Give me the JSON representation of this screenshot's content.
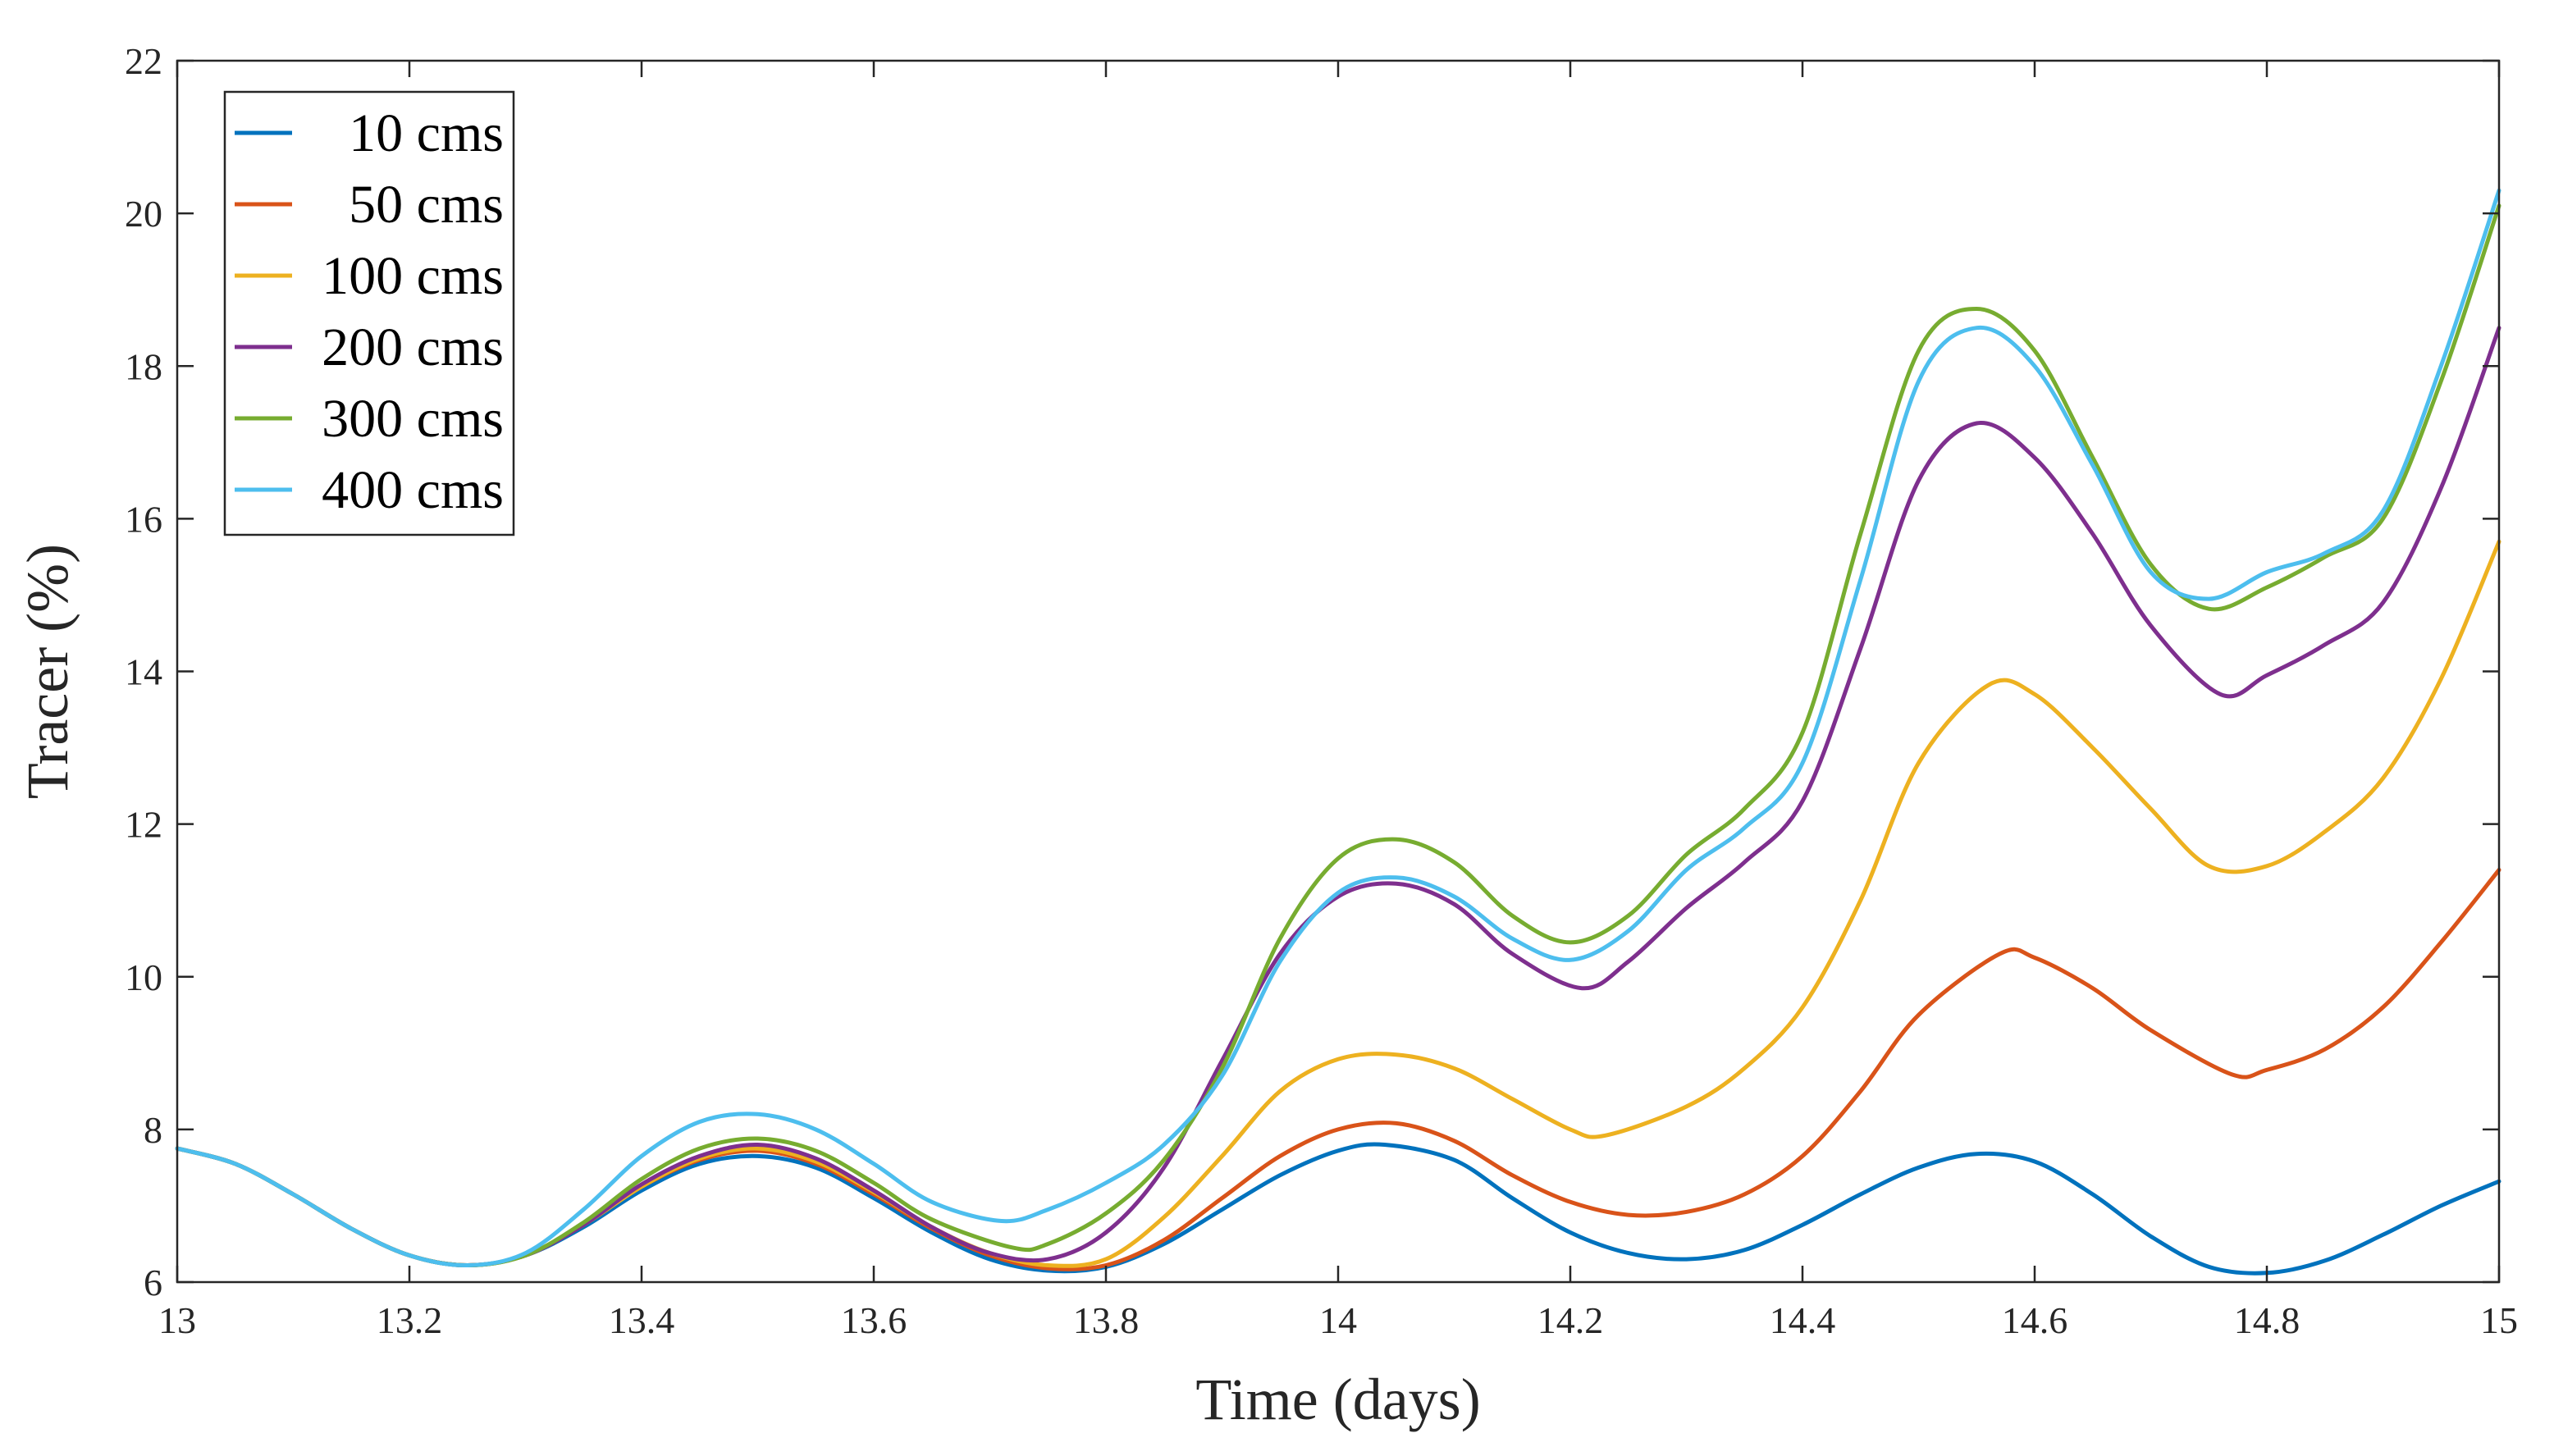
{
  "chart_data": {
    "type": "line",
    "title": "",
    "xlabel": "Time (days)",
    "ylabel": "Tracer (%)",
    "xlim": [
      13,
      15
    ],
    "ylim": [
      6,
      22
    ],
    "xticks": [
      13,
      13.2,
      13.4,
      13.6,
      13.8,
      14,
      14.2,
      14.4,
      14.6,
      14.8,
      15
    ],
    "xtick_labels": [
      "13",
      "13.2",
      "13.4",
      "13.6",
      "13.8",
      "14",
      "14.2",
      "14.4",
      "14.6",
      "14.8",
      "15"
    ],
    "yticks": [
      6,
      8,
      10,
      12,
      14,
      16,
      18,
      20,
      22
    ],
    "ytick_labels": [
      "6",
      "8",
      "10",
      "12",
      "14",
      "16",
      "18",
      "20",
      "22"
    ],
    "grid": false,
    "legend_position": "top-left",
    "series": [
      {
        "name": "10 cms",
        "color": "#0072BD",
        "x": [
          13.0,
          13.05,
          13.1,
          13.15,
          13.2,
          13.25,
          13.3,
          13.35,
          13.4,
          13.45,
          13.5,
          13.55,
          13.6,
          13.65,
          13.7,
          13.75,
          13.8,
          13.85,
          13.9,
          13.95,
          14.0,
          14.04,
          14.1,
          14.15,
          14.2,
          14.25,
          14.3,
          14.35,
          14.4,
          14.45,
          14.5,
          14.55,
          14.6,
          14.65,
          14.7,
          14.75,
          14.8,
          14.85,
          14.9,
          14.95,
          15.0
        ],
        "y": [
          7.75,
          7.55,
          7.15,
          6.7,
          6.35,
          6.22,
          6.35,
          6.72,
          7.2,
          7.55,
          7.65,
          7.5,
          7.1,
          6.65,
          6.3,
          6.15,
          6.2,
          6.5,
          6.95,
          7.4,
          7.72,
          7.8,
          7.6,
          7.1,
          6.65,
          6.38,
          6.3,
          6.42,
          6.75,
          7.15,
          7.5,
          7.68,
          7.58,
          7.15,
          6.6,
          6.2,
          6.12,
          6.28,
          6.62,
          7.0,
          7.32
        ]
      },
      {
        "name": "50 cms",
        "color": "#D95319",
        "x": [
          13.0,
          13.05,
          13.1,
          13.15,
          13.2,
          13.25,
          13.3,
          13.35,
          13.4,
          13.45,
          13.5,
          13.55,
          13.6,
          13.65,
          13.7,
          13.75,
          13.8,
          13.85,
          13.9,
          13.95,
          14.0,
          14.05,
          14.1,
          14.15,
          14.2,
          14.25,
          14.3,
          14.35,
          14.4,
          14.45,
          14.5,
          14.57,
          14.6,
          14.65,
          14.7,
          14.77,
          14.8,
          14.85,
          14.9,
          14.95,
          15.0
        ],
        "y": [
          7.75,
          7.55,
          7.15,
          6.7,
          6.35,
          6.22,
          6.35,
          6.75,
          7.25,
          7.6,
          7.72,
          7.55,
          7.15,
          6.7,
          6.35,
          6.18,
          6.22,
          6.55,
          7.1,
          7.65,
          8.0,
          8.08,
          7.85,
          7.4,
          7.05,
          6.88,
          6.92,
          7.15,
          7.65,
          8.5,
          9.5,
          10.3,
          10.25,
          9.85,
          9.3,
          8.72,
          8.78,
          9.05,
          9.6,
          10.45,
          11.4
        ]
      },
      {
        "name": "100 cms",
        "color": "#EDB120",
        "x": [
          13.0,
          13.05,
          13.1,
          13.15,
          13.2,
          13.25,
          13.3,
          13.35,
          13.4,
          13.45,
          13.5,
          13.55,
          13.6,
          13.65,
          13.7,
          13.75,
          13.8,
          13.85,
          13.9,
          13.95,
          14.0,
          14.05,
          14.1,
          14.15,
          14.2,
          14.23,
          14.3,
          14.35,
          14.4,
          14.45,
          14.5,
          14.56,
          14.6,
          14.65,
          14.7,
          14.75,
          14.8,
          14.85,
          14.9,
          14.95,
          15.0
        ],
        "y": [
          7.75,
          7.55,
          7.15,
          6.7,
          6.35,
          6.22,
          6.35,
          6.75,
          7.25,
          7.62,
          7.75,
          7.58,
          7.18,
          6.72,
          6.38,
          6.22,
          6.3,
          6.85,
          7.65,
          8.5,
          8.92,
          8.98,
          8.8,
          8.4,
          8.0,
          7.92,
          8.3,
          8.8,
          9.6,
          11.0,
          12.8,
          13.82,
          13.7,
          13.0,
          12.2,
          11.45,
          11.45,
          11.9,
          12.6,
          13.9,
          15.7
        ]
      },
      {
        "name": "200 cms",
        "color": "#7E2F8E",
        "x": [
          13.0,
          13.05,
          13.1,
          13.15,
          13.2,
          13.25,
          13.3,
          13.35,
          13.4,
          13.45,
          13.5,
          13.55,
          13.6,
          13.65,
          13.7,
          13.75,
          13.8,
          13.85,
          13.9,
          13.95,
          14.0,
          14.05,
          14.1,
          14.15,
          14.21,
          14.25,
          14.3,
          14.35,
          14.4,
          14.45,
          14.5,
          14.55,
          14.6,
          14.65,
          14.7,
          14.76,
          14.8,
          14.85,
          14.9,
          14.95,
          15.0
        ],
        "y": [
          7.75,
          7.55,
          7.15,
          6.7,
          6.35,
          6.22,
          6.35,
          6.75,
          7.28,
          7.65,
          7.8,
          7.62,
          7.2,
          6.72,
          6.38,
          6.3,
          6.65,
          7.5,
          8.9,
          10.3,
          11.05,
          11.22,
          10.95,
          10.3,
          9.85,
          10.2,
          10.9,
          11.5,
          12.3,
          14.3,
          16.5,
          17.25,
          16.8,
          15.8,
          14.6,
          13.7,
          13.95,
          14.35,
          14.9,
          16.4,
          18.5
        ]
      },
      {
        "name": "300 cms",
        "color": "#77AC30",
        "x": [
          13.0,
          13.05,
          13.1,
          13.15,
          13.2,
          13.25,
          13.3,
          13.35,
          13.4,
          13.45,
          13.5,
          13.55,
          13.6,
          13.65,
          13.72,
          13.75,
          13.8,
          13.85,
          13.9,
          13.95,
          14.0,
          14.05,
          14.1,
          14.15,
          14.2,
          14.25,
          14.3,
          14.35,
          14.4,
          14.45,
          14.5,
          14.55,
          14.6,
          14.65,
          14.7,
          14.75,
          14.8,
          14.85,
          14.9,
          14.95,
          15.0
        ],
        "y": [
          7.75,
          7.55,
          7.15,
          6.7,
          6.35,
          6.22,
          6.35,
          6.78,
          7.35,
          7.75,
          7.88,
          7.72,
          7.3,
          6.82,
          6.45,
          6.5,
          6.9,
          7.6,
          8.8,
          10.5,
          11.55,
          11.8,
          11.5,
          10.8,
          10.45,
          10.8,
          11.6,
          12.2,
          13.2,
          15.8,
          18.2,
          18.75,
          18.2,
          16.8,
          15.4,
          14.82,
          15.1,
          15.5,
          16.0,
          17.8,
          20.1
        ]
      },
      {
        "name": "400 cms",
        "color": "#4DBEEE",
        "x": [
          13.0,
          13.05,
          13.1,
          13.15,
          13.2,
          13.25,
          13.3,
          13.35,
          13.4,
          13.45,
          13.5,
          13.55,
          13.6,
          13.65,
          13.71,
          13.75,
          13.8,
          13.85,
          13.9,
          13.95,
          14.0,
          14.05,
          14.1,
          14.15,
          14.2,
          14.25,
          14.3,
          14.35,
          14.4,
          14.45,
          14.5,
          14.55,
          14.6,
          14.65,
          14.7,
          14.75,
          14.8,
          14.85,
          14.9,
          14.95,
          15.0
        ],
        "y": [
          7.75,
          7.55,
          7.15,
          6.7,
          6.35,
          6.22,
          6.38,
          6.95,
          7.65,
          8.1,
          8.2,
          8.0,
          7.55,
          7.05,
          6.8,
          6.95,
          7.3,
          7.8,
          8.7,
          10.2,
          11.1,
          11.3,
          11.05,
          10.5,
          10.22,
          10.6,
          11.4,
          11.95,
          12.8,
          15.2,
          17.8,
          18.5,
          18.0,
          16.7,
          15.3,
          14.95,
          15.3,
          15.55,
          16.1,
          18.0,
          20.3
        ]
      }
    ]
  }
}
